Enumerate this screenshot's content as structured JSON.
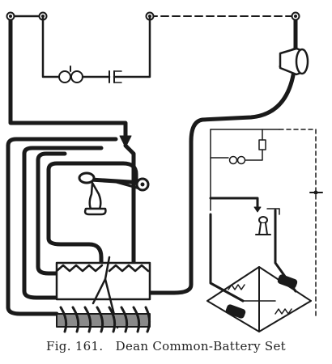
{
  "caption": "Fig. 161.   Dean Common-Battery Set",
  "colors": {
    "ink": "#1a1a1a",
    "paper": "#ffffff",
    "coil_core": "#8a8a8a"
  },
  "icons": [
    "binding-post-icon",
    "ringer-bells-icon",
    "hook-switch-icon",
    "condenser-icon",
    "receiver-icon",
    "transmitter-icon",
    "induction-coil-icon",
    "resistance-coil-icon",
    "battery-cell-icon"
  ]
}
